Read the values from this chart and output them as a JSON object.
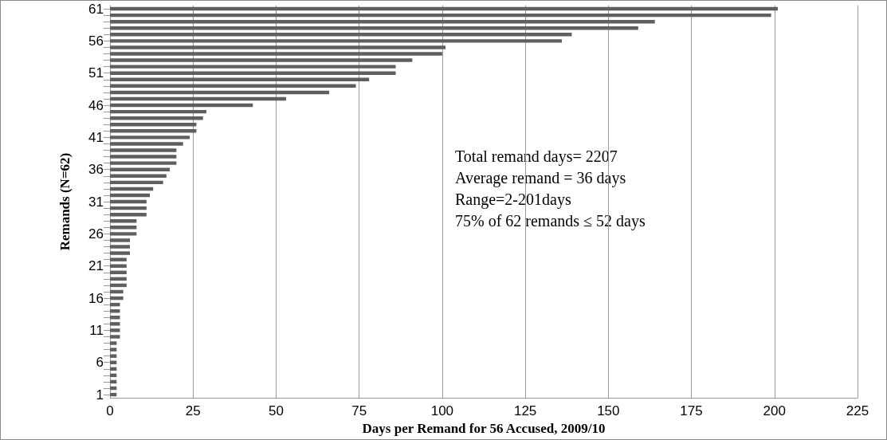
{
  "chart_data": {
    "type": "bar",
    "orientation": "horizontal",
    "xlabel": "Days per Remand for 56 Accused, 2009/10",
    "ylabel": "Remands (N=62)",
    "categories": [
      "61",
      null,
      null,
      null,
      null,
      "56",
      null,
      null,
      null,
      null,
      "51",
      null,
      null,
      null,
      null,
      "46",
      null,
      null,
      null,
      null,
      "41",
      null,
      null,
      null,
      null,
      "36",
      null,
      null,
      null,
      null,
      "31",
      null,
      null,
      null,
      null,
      "26",
      null,
      null,
      null,
      null,
      "21",
      null,
      null,
      null,
      null,
      "16",
      null,
      null,
      null,
      null,
      "11",
      null,
      null,
      null,
      null,
      "6",
      null,
      null,
      null,
      null,
      "1"
    ],
    "values": [
      201,
      199,
      164,
      159,
      139,
      136,
      101,
      100,
      91,
      86,
      86,
      78,
      74,
      66,
      53,
      43,
      29,
      28,
      26,
      26,
      24,
      22,
      20,
      20,
      20,
      18,
      17,
      16,
      13,
      12,
      11,
      11,
      11,
      8,
      8,
      8,
      6,
      6,
      6,
      5,
      5,
      5,
      5,
      5,
      4,
      4,
      3,
      3,
      3,
      3,
      3,
      3,
      2,
      2,
      2,
      2,
      2,
      2,
      2,
      2,
      2
    ],
    "color": "#5f5f5f",
    "xlim": [
      0,
      225
    ],
    "xticks": [
      0,
      25,
      50,
      75,
      100,
      125,
      150,
      175,
      200,
      225
    ],
    "grid": "x",
    "annotations": [
      "Total remand days= 2207",
      "Average remand = 36 days",
      "Range=2-201days",
      "75% of 62 remands ≤ 52 days"
    ]
  }
}
